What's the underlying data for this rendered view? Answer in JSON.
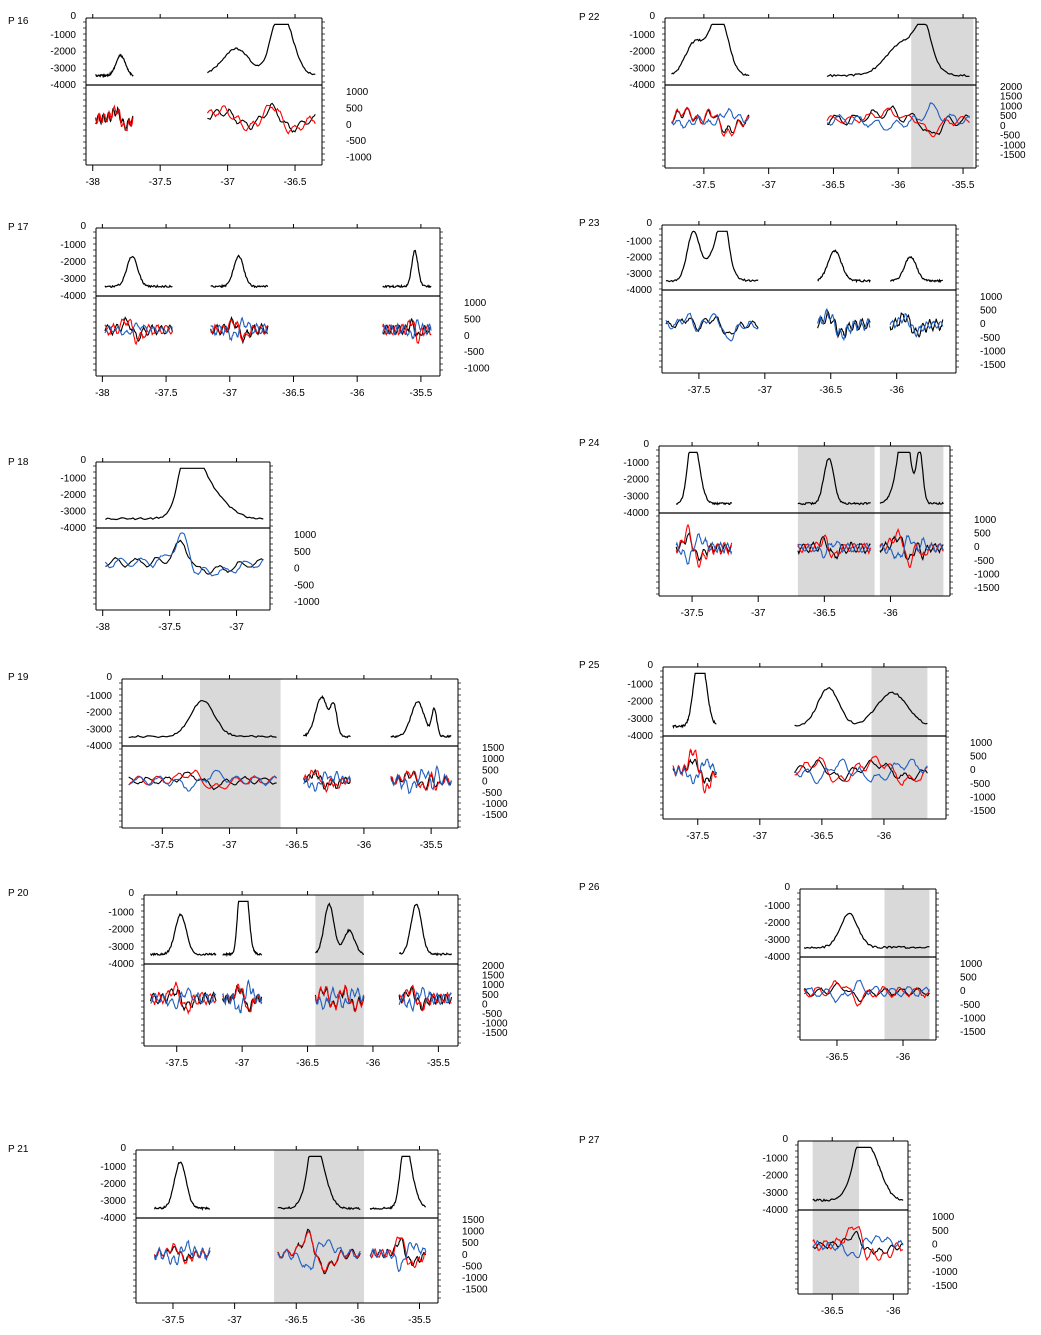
{
  "chart_data": [
    {
      "type": "line",
      "label": "P 16",
      "top_yticks": [
        "0",
        "-1000",
        "-2000",
        "-3000",
        "-4000"
      ],
      "bottom_yticks": [
        "1000",
        "500",
        "0",
        "-500",
        "-1000"
      ],
      "x_min": -38.05,
      "x_max": -36.3,
      "xticks": [
        "-38",
        "-37.5",
        "-37",
        "-36.5"
      ],
      "shaded": [],
      "segments": [
        [
          -37.98,
          -37.7
        ],
        [
          -37.15,
          -36.35
        ]
      ],
      "series": [
        "black",
        "red"
      ]
    },
    {
      "type": "line",
      "label": "P 17",
      "top_yticks": [
        "0",
        "-1000",
        "-2000",
        "-3000",
        "-4000"
      ],
      "bottom_yticks": [
        "1000",
        "500",
        "0",
        "-500",
        "-1000"
      ],
      "x_min": -38.05,
      "x_max": -35.35,
      "xticks": [
        "-38",
        "-37.5",
        "-37",
        "-36.5",
        "-36",
        "-35.5"
      ],
      "shaded": [],
      "segments": [
        [
          -37.98,
          -37.45
        ],
        [
          -37.15,
          -36.7
        ],
        [
          -35.8,
          -35.42
        ]
      ],
      "series": [
        "black",
        "red",
        "blue"
      ]
    },
    {
      "type": "line",
      "label": "P 18",
      "top_yticks": [
        "0",
        "-1000",
        "-2000",
        "-3000",
        "-4000"
      ],
      "bottom_yticks": [
        "1000",
        "500",
        "0",
        "-500",
        "-1000"
      ],
      "x_min": -38.05,
      "x_max": -36.75,
      "xticks": [
        "-38",
        "-37.5",
        "-37"
      ],
      "shaded": [],
      "segments": [
        [
          -37.98,
          -36.8
        ]
      ],
      "series": [
        "black",
        "blue"
      ]
    },
    {
      "type": "line",
      "label": "P 19",
      "top_yticks": [
        "0",
        "-1000",
        "-2000",
        "-3000",
        "-4000"
      ],
      "bottom_yticks": [
        "1500",
        "1000",
        "500",
        "0",
        "-500",
        "-1000",
        "-1500"
      ],
      "x_min": -37.8,
      "x_max": -35.3,
      "xticks": [
        "-37.5",
        "-37",
        "-36.5",
        "-36",
        "-35.5"
      ],
      "shaded": [
        [
          -37.22,
          -36.62
        ]
      ],
      "segments": [
        [
          -37.75,
          -36.65
        ],
        [
          -36.45,
          -36.1
        ],
        [
          -35.8,
          -35.35
        ]
      ],
      "series": [
        "black",
        "red",
        "blue"
      ]
    },
    {
      "type": "line",
      "label": "P 20",
      "top_yticks": [
        "0",
        "-1000",
        "-2000",
        "-3000",
        "-4000"
      ],
      "bottom_yticks": [
        "2000",
        "1500",
        "1000",
        "500",
        "0",
        "-500",
        "-1000",
        "-1500"
      ],
      "x_min": -37.75,
      "x_max": -35.35,
      "xticks": [
        "-37.5",
        "-37",
        "-36.5",
        "-36",
        "-35.5"
      ],
      "shaded": [
        [
          -36.44,
          -36.07
        ]
      ],
      "segments": [
        [
          -37.7,
          -37.2
        ],
        [
          -37.15,
          -36.85
        ],
        [
          -36.44,
          -36.07
        ],
        [
          -35.8,
          -35.4
        ]
      ],
      "series": [
        "black",
        "red",
        "blue"
      ]
    },
    {
      "type": "line",
      "label": "P 21",
      "top_yticks": [
        "0",
        "-1000",
        "-2000",
        "-3000",
        "-4000"
      ],
      "bottom_yticks": [
        "1500",
        "1000",
        "500",
        "0",
        "-500",
        "-1000",
        "-1500"
      ],
      "x_min": -37.8,
      "x_max": -35.35,
      "xticks": [
        "-37.5",
        "-37",
        "-36.5",
        "-36",
        "-35.5"
      ],
      "shaded": [
        [
          -36.68,
          -35.95
        ]
      ],
      "segments": [
        [
          -37.65,
          -37.2
        ],
        [
          -36.65,
          -35.98
        ],
        [
          -35.9,
          -35.45
        ]
      ],
      "series": [
        "black",
        "red",
        "blue"
      ]
    },
    {
      "type": "line",
      "label": "P 22",
      "top_yticks": [
        "0",
        "-1000",
        "-2000",
        "-3000",
        "-4000"
      ],
      "bottom_yticks": [
        "2000",
        "1500",
        "1000",
        "500",
        "0",
        "-500",
        "-1000",
        "-1500"
      ],
      "x_min": -37.8,
      "x_max": -35.4,
      "xticks": [
        "-37.5",
        "-37",
        "-36.5",
        "-36",
        "-35.5"
      ],
      "shaded": [
        [
          -35.9,
          -35.42
        ]
      ],
      "segments": [
        [
          -37.75,
          -37.15
        ],
        [
          -36.55,
          -35.45
        ]
      ],
      "series": [
        "black",
        "red",
        "blue"
      ]
    },
    {
      "type": "line",
      "label": "P 23",
      "top_yticks": [
        "0",
        "-1000",
        "-2000",
        "-3000",
        "-4000"
      ],
      "bottom_yticks": [
        "1000",
        "500",
        "0",
        "-500",
        "-1000",
        "-1500"
      ],
      "x_min": -37.78,
      "x_max": -35.55,
      "xticks": [
        "-37.5",
        "-37",
        "-36.5",
        "-36"
      ],
      "shaded": [],
      "segments": [
        [
          -37.75,
          -37.05
        ],
        [
          -36.6,
          -36.2
        ],
        [
          -36.05,
          -35.65
        ]
      ],
      "series": [
        "black",
        "blue"
      ]
    },
    {
      "type": "line",
      "label": "P 24",
      "top_yticks": [
        "0",
        "-1000",
        "-2000",
        "-3000",
        "-4000"
      ],
      "bottom_yticks": [
        "1000",
        "500",
        "0",
        "-500",
        "-1000",
        "-1500"
      ],
      "x_min": -37.75,
      "x_max": -35.55,
      "xticks": [
        "-37.5",
        "-37",
        "-36.5",
        "-36"
      ],
      "shaded": [
        [
          -36.7,
          -36.12
        ],
        [
          -36.08,
          -35.6
        ]
      ],
      "segments": [
        [
          -37.62,
          -37.2
        ],
        [
          -36.7,
          -36.15
        ],
        [
          -36.08,
          -35.6
        ]
      ],
      "series": [
        "black",
        "red",
        "blue"
      ]
    },
    {
      "type": "line",
      "label": "P 25",
      "top_yticks": [
        "0",
        "-1000",
        "-2000",
        "-3000",
        "-4000"
      ],
      "bottom_yticks": [
        "1000",
        "500",
        "0",
        "-500",
        "-1000",
        "-1500"
      ],
      "x_min": -37.78,
      "x_max": -35.5,
      "xticks": [
        "-37.5",
        "-37",
        "-36.5",
        "-36"
      ],
      "shaded": [
        [
          -36.1,
          -35.65
        ]
      ],
      "segments": [
        [
          -37.7,
          -37.35
        ],
        [
          -36.72,
          -35.65
        ]
      ],
      "series": [
        "black",
        "red",
        "blue"
      ]
    },
    {
      "type": "line",
      "label": "P 26",
      "top_yticks": [
        "0",
        "-1000",
        "-2000",
        "-3000",
        "-4000"
      ],
      "bottom_yticks": [
        "1000",
        "500",
        "0",
        "-500",
        "-1000",
        "-1500"
      ],
      "x_min": -36.78,
      "x_max": -35.75,
      "xticks": [
        "-36.5",
        "-36"
      ],
      "shaded": [
        [
          -36.14,
          -35.8
        ]
      ],
      "segments": [
        [
          -36.75,
          -35.8
        ]
      ],
      "series": [
        "black",
        "red",
        "blue"
      ]
    },
    {
      "type": "line",
      "label": "P 27",
      "top_yticks": [
        "0",
        "-1000",
        "-2000",
        "-3000",
        "-4000"
      ],
      "bottom_yticks": [
        "1000",
        "500",
        "0",
        "-500",
        "-1000",
        "-1500"
      ],
      "x_min": -36.78,
      "x_max": -35.88,
      "xticks": [
        "-36.5",
        "-36"
      ],
      "shaded": [
        [
          -36.66,
          -36.28
        ]
      ],
      "segments": [
        [
          -36.66,
          -35.92
        ]
      ],
      "series": [
        "black",
        "red",
        "blue"
      ]
    }
  ],
  "colors": {
    "black": "#000000",
    "red": "#ff0000",
    "blue": "#1f5fbf",
    "shade": "#d9d9d9"
  }
}
